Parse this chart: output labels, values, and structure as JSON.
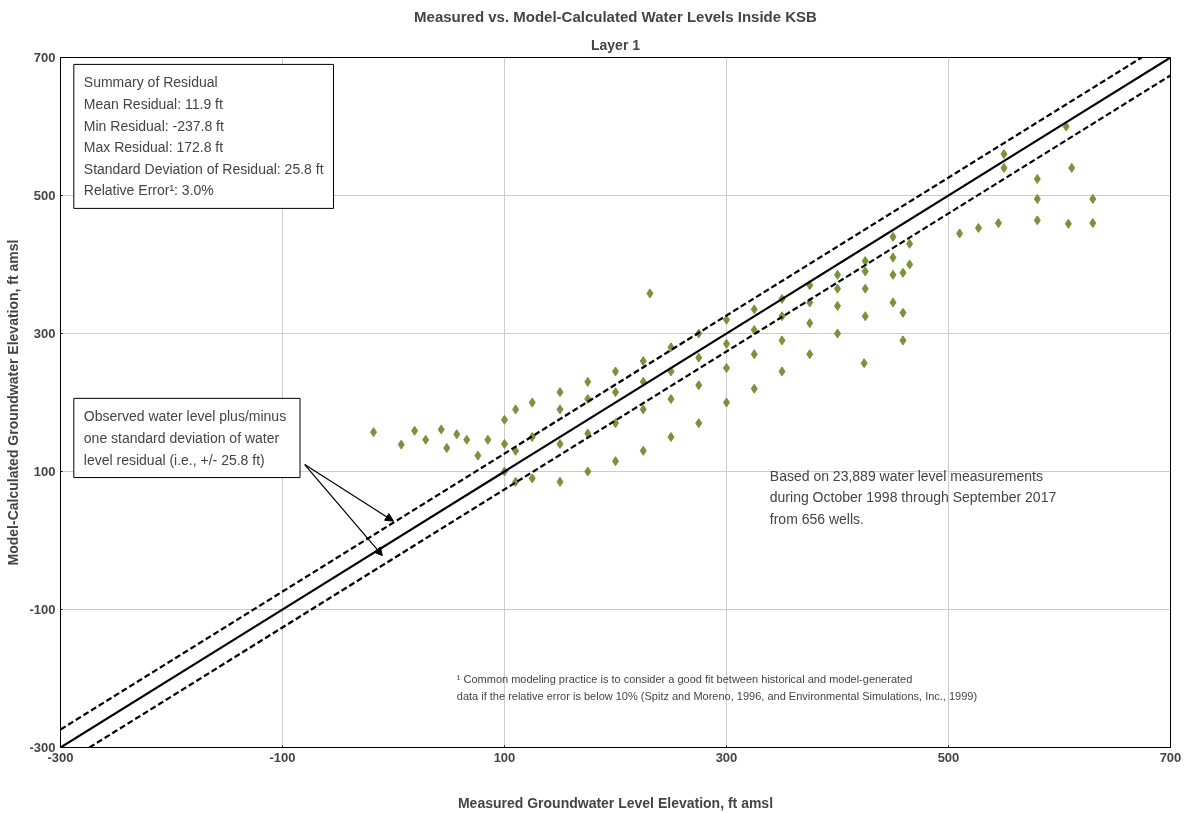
{
  "chart_data": {
    "type": "scatter",
    "title": "Measured vs. Model-Calculated Water Levels Inside KSB",
    "subtitle": "Layer 1",
    "xlabel": "Measured Groundwater Level Elevation, ft amsl",
    "ylabel": "Model-Calculated Groundwater Elevation, ft amsl",
    "xlim": [
      -300,
      700
    ],
    "ylim": [
      -300,
      700
    ],
    "xticks": [
      -300,
      -100,
      100,
      300,
      500,
      700
    ],
    "yticks": [
      -300,
      -100,
      100,
      300,
      500,
      700
    ],
    "grid": true,
    "series": [
      {
        "marker": "diamond",
        "color": "#77933c",
        "x": [
          -18,
          7,
          19,
          29,
          43,
          48,
          57,
          66,
          76,
          85,
          100,
          100,
          100,
          110,
          110,
          110,
          125,
          125,
          125,
          150,
          150,
          150,
          150,
          175,
          175,
          175,
          175,
          200,
          200,
          200,
          200,
          225,
          225,
          225,
          225,
          250,
          250,
          250,
          250,
          275,
          275,
          275,
          275,
          300,
          300,
          300,
          300,
          325,
          325,
          325,
          325,
          350,
          350,
          350,
          350,
          375,
          375,
          375,
          375,
          400,
          400,
          400,
          400,
          425,
          425,
          425,
          425,
          450,
          450,
          450,
          450,
          465,
          465,
          231,
          459,
          459,
          459,
          424,
          527,
          510,
          545,
          580,
          580,
          580,
          606,
          611,
          608,
          630,
          630,
          550,
          550
        ],
        "values": [
          157,
          139,
          159,
          146,
          161,
          134,
          154,
          146,
          123,
          146,
          100,
          140,
          175,
          85,
          130,
          190,
          90,
          150,
          200,
          85,
          140,
          190,
          215,
          100,
          155,
          205,
          230,
          115,
          170,
          215,
          245,
          130,
          190,
          230,
          260,
          150,
          205,
          245,
          280,
          170,
          225,
          265,
          300,
          200,
          250,
          285,
          320,
          220,
          270,
          305,
          335,
          245,
          290,
          325,
          350,
          270,
          315,
          345,
          370,
          300,
          340,
          365,
          385,
          325,
          365,
          390,
          405,
          345,
          385,
          410,
          440,
          400,
          430,
          358,
          290,
          330,
          388,
          257,
          453,
          445,
          460,
          524,
          495,
          464,
          600,
          540,
          459,
          495,
          460,
          560,
          540
        ]
      },
      {
        "type": "line",
        "color": "#000000",
        "line_style": "solid",
        "x": [
          -300,
          700
        ],
        "values": [
          -300,
          700
        ]
      },
      {
        "type": "line",
        "color": "#000000",
        "line_style": "dashed",
        "x": [
          -300,
          674
        ],
        "values": [
          -274,
          700
        ]
      },
      {
        "type": "line",
        "color": "#000000",
        "line_style": "dashed",
        "x": [
          -274,
          700
        ],
        "values": [
          -300,
          674
        ]
      }
    ],
    "annotations": [
      "Summary of Residual\nMean Residual: 11.9 ft\nMin Residual: -237.8 ft\nMax Residual: 172.8 ft\nStandard Deviation of Residual: 25.8 ft\nRelative Error¹: 3.0%",
      "Observed water level  plus/minus\none standard deviation of water\nlevel residual  (i.e., +/- 25.8 ft)",
      "Based on 23,889 water level measurements\nduring October 1998 through September 2017\nfrom 656 wells.",
      "¹ Common modeling practice is to consider a good fit between  historical and model-generated\ndata if the  relative error is below 10% (Spitz and Moreno, 1996, and Environmental Simulations, Inc., 1999)"
    ]
  }
}
